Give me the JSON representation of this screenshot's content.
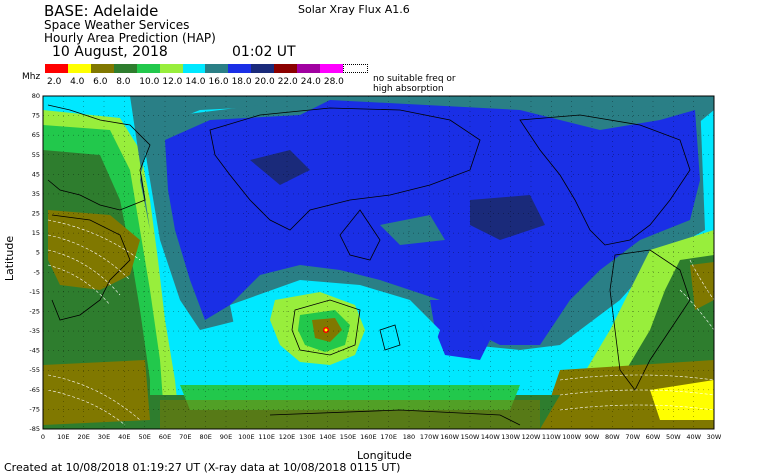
{
  "header": {
    "base": "BASE: Adelaide",
    "line2": "Space Weather Services",
    "line3": "Hourly Area Prediction (HAP)",
    "date": "10 August, 2018",
    "time": "01:02 UT",
    "flux": "Solar Xray Flux A1.6"
  },
  "legend": {
    "unit": "Mhz",
    "items": [
      {
        "label": "2.0",
        "color": "#ff0000"
      },
      {
        "label": "4.0",
        "color": "#ffff00"
      },
      {
        "label": "6.0",
        "color": "#807800"
      },
      {
        "label": "8.0",
        "color": "#2e7d2e"
      },
      {
        "label": "10.0",
        "color": "#22c84c"
      },
      {
        "label": "12.0",
        "color": "#98ee3c"
      },
      {
        "label": "14.0",
        "color": "#00e8ff"
      },
      {
        "label": "16.0",
        "color": "#2a7f86"
      },
      {
        "label": "18.0",
        "color": "#1a2fe6"
      },
      {
        "label": "20.0",
        "color": "#1a2a7a"
      },
      {
        "label": "22.0",
        "color": "#8b0000"
      },
      {
        "label": "24.0",
        "color": "#a000a0"
      },
      {
        "label": "28.0",
        "color": "#ff00ff"
      },
      {
        "label": "",
        "color": "#909090"
      }
    ],
    "no_suitable": "no suitable freq or high absorption"
  },
  "axes": {
    "ylabel": "Latitude",
    "xlabel": "Longitude",
    "lat_ticks": [
      "80",
      "75",
      "65",
      "55",
      "45",
      "35",
      "25",
      "15",
      "5",
      "-5",
      "-15",
      "-25",
      "-35",
      "-45",
      "-55",
      "-65",
      "-75",
      "-85"
    ],
    "lon_ticks": [
      "0",
      "10E",
      "20E",
      "30E",
      "40E",
      "50E",
      "60E",
      "70E",
      "80E",
      "90E",
      "100E",
      "110E",
      "120E",
      "130E",
      "140E",
      "150E",
      "160E",
      "170E",
      "180",
      "170W",
      "160W",
      "150W",
      "140W",
      "130W",
      "120W",
      "110W",
      "100W",
      "90W",
      "80W",
      "70W",
      "60W",
      "50W",
      "40W",
      "30W"
    ]
  },
  "footer": "Created at 10/08/2018 01:19:27 UT (X-ray data at 10/08/2018 0115 UT)"
}
